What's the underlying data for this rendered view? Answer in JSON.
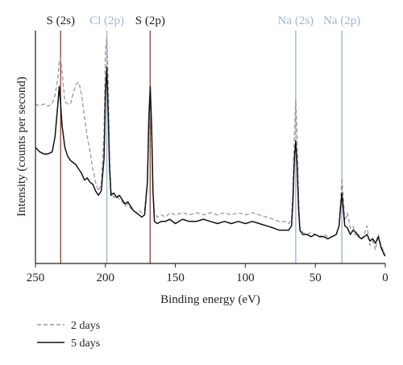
{
  "chart_data": {
    "type": "line",
    "xlabel": "Binding energy (eV)",
    "ylabel": "Intensity (counts per second)",
    "xlim": [
      250,
      0
    ],
    "x_reversed": true,
    "x_ticks": [
      250,
      200,
      150,
      100,
      50,
      0
    ],
    "y_ticks_shown": false,
    "ylim": [
      0,
      1
    ],
    "grid": false,
    "legend_position": "bottom-left",
    "colors": {
      "s_lines": "#a0483a",
      "cl_na_lines": "#9db8d2",
      "s_label": "#222222",
      "cl_na_label": "#9fb6cc",
      "series_2days": "#999999",
      "series_5days": "#111111"
    },
    "annotations": [
      {
        "label": "S (2s)",
        "x": 232,
        "color_key": "s_lines"
      },
      {
        "label": "Cl (2p)",
        "x": 199,
        "color_key": "cl_na_lines"
      },
      {
        "label": "S (2p)",
        "x": 168,
        "color_key": "s_lines"
      },
      {
        "label": "Na (2s)",
        "x": 64,
        "color_key": "cl_na_lines"
      },
      {
        "label": "Na (2p)",
        "x": 31,
        "color_key": "cl_na_lines"
      }
    ],
    "series": [
      {
        "name": "2 days",
        "style": "dashed",
        "points": [
          [
            250,
            0.7
          ],
          [
            247,
            0.69
          ],
          [
            244,
            0.7
          ],
          [
            241,
            0.69
          ],
          [
            238,
            0.7
          ],
          [
            236,
            0.74
          ],
          [
            234,
            0.82
          ],
          [
            233,
            0.9
          ],
          [
            232,
            0.91
          ],
          [
            231,
            0.85
          ],
          [
            229,
            0.71
          ],
          [
            227,
            0.7
          ],
          [
            225,
            0.7
          ],
          [
            223,
            0.75
          ],
          [
            221,
            0.79
          ],
          [
            219,
            0.8
          ],
          [
            217,
            0.74
          ],
          [
            215,
            0.64
          ],
          [
            213,
            0.55
          ],
          [
            211,
            0.48
          ],
          [
            209,
            0.4
          ],
          [
            207,
            0.34
          ],
          [
            205,
            0.3
          ],
          [
            203,
            0.33
          ],
          [
            201,
            0.57
          ],
          [
            200,
            0.95
          ],
          [
            199,
            1.0
          ],
          [
            198,
            0.8
          ],
          [
            197,
            0.45
          ],
          [
            196,
            0.3
          ],
          [
            194,
            0.27
          ],
          [
            192,
            0.28
          ],
          [
            190,
            0.26
          ],
          [
            188,
            0.25
          ],
          [
            186,
            0.23
          ],
          [
            184,
            0.24
          ],
          [
            182,
            0.22
          ],
          [
            180,
            0.21
          ],
          [
            178,
            0.2
          ],
          [
            176,
            0.21
          ],
          [
            174,
            0.2
          ],
          [
            172,
            0.21
          ],
          [
            170,
            0.34
          ],
          [
            169,
            0.58
          ],
          [
            168,
            0.67
          ],
          [
            167,
            0.55
          ],
          [
            166,
            0.3
          ],
          [
            165,
            0.2
          ],
          [
            163,
            0.18
          ],
          [
            160,
            0.19
          ],
          [
            157,
            0.18
          ],
          [
            154,
            0.2
          ],
          [
            150,
            0.19
          ],
          [
            145,
            0.2
          ],
          [
            140,
            0.19
          ],
          [
            135,
            0.2
          ],
          [
            130,
            0.19
          ],
          [
            125,
            0.2
          ],
          [
            120,
            0.19
          ],
          [
            115,
            0.2
          ],
          [
            110,
            0.19
          ],
          [
            105,
            0.2
          ],
          [
            100,
            0.19
          ],
          [
            95,
            0.2
          ],
          [
            90,
            0.19
          ],
          [
            85,
            0.18
          ],
          [
            80,
            0.17
          ],
          [
            76,
            0.16
          ],
          [
            72,
            0.16
          ],
          [
            69,
            0.15
          ],
          [
            67,
            0.17
          ],
          [
            66,
            0.3
          ],
          [
            65,
            0.55
          ],
          [
            64,
            0.72
          ],
          [
            63,
            0.56
          ],
          [
            62,
            0.28
          ],
          [
            61,
            0.13
          ],
          [
            59,
            0.11
          ],
          [
            56,
            0.1
          ],
          [
            53,
            0.11
          ],
          [
            50,
            0.1
          ],
          [
            47,
            0.09
          ],
          [
            44,
            0.1
          ],
          [
            41,
            0.09
          ],
          [
            38,
            0.09
          ],
          [
            35,
            0.1
          ],
          [
            33,
            0.14
          ],
          [
            32,
            0.24
          ],
          [
            31,
            0.36
          ],
          [
            30,
            0.27
          ],
          [
            29,
            0.16
          ],
          [
            27,
            0.2
          ],
          [
            25,
            0.13
          ],
          [
            23,
            0.14
          ],
          [
            21,
            0.09
          ],
          [
            19,
            0.1
          ],
          [
            17,
            0.08
          ],
          [
            15,
            0.1
          ],
          [
            13,
            0.14
          ],
          [
            11,
            0.05
          ],
          [
            9,
            0.07
          ],
          [
            7,
            0.03
          ],
          [
            5,
            0.1
          ],
          [
            3,
            0.05
          ],
          [
            1,
            0.02
          ],
          [
            0,
            0.01
          ]
        ]
      },
      {
        "name": "5 days",
        "style": "solid",
        "points": [
          [
            250,
            0.5
          ],
          [
            247,
            0.48
          ],
          [
            244,
            0.47
          ],
          [
            241,
            0.47
          ],
          [
            238,
            0.48
          ],
          [
            236,
            0.55
          ],
          [
            234,
            0.7
          ],
          [
            233,
            0.78
          ],
          [
            232,
            0.7
          ],
          [
            231,
            0.6
          ],
          [
            229,
            0.5
          ],
          [
            227,
            0.46
          ],
          [
            225,
            0.44
          ],
          [
            223,
            0.43
          ],
          [
            221,
            0.42
          ],
          [
            219,
            0.4
          ],
          [
            217,
            0.38
          ],
          [
            215,
            0.35
          ],
          [
            213,
            0.36
          ],
          [
            211,
            0.34
          ],
          [
            209,
            0.33
          ],
          [
            207,
            0.3
          ],
          [
            205,
            0.28
          ],
          [
            203,
            0.3
          ],
          [
            201,
            0.45
          ],
          [
            200,
            0.75
          ],
          [
            199,
            0.87
          ],
          [
            198,
            0.65
          ],
          [
            197,
            0.4
          ],
          [
            196,
            0.28
          ],
          [
            194,
            0.29
          ],
          [
            192,
            0.27
          ],
          [
            190,
            0.28
          ],
          [
            188,
            0.26
          ],
          [
            186,
            0.24
          ],
          [
            184,
            0.25
          ],
          [
            182,
            0.23
          ],
          [
            180,
            0.21
          ],
          [
            178,
            0.2
          ],
          [
            176,
            0.19
          ],
          [
            174,
            0.18
          ],
          [
            172,
            0.19
          ],
          [
            170,
            0.34
          ],
          [
            169,
            0.63
          ],
          [
            168,
            0.78
          ],
          [
            167,
            0.6
          ],
          [
            166,
            0.3
          ],
          [
            165,
            0.16
          ],
          [
            163,
            0.15
          ],
          [
            160,
            0.16
          ],
          [
            157,
            0.16
          ],
          [
            154,
            0.17
          ],
          [
            150,
            0.15
          ],
          [
            145,
            0.17
          ],
          [
            140,
            0.16
          ],
          [
            135,
            0.16
          ],
          [
            130,
            0.17
          ],
          [
            125,
            0.16
          ],
          [
            120,
            0.15
          ],
          [
            115,
            0.16
          ],
          [
            110,
            0.15
          ],
          [
            105,
            0.16
          ],
          [
            100,
            0.15
          ],
          [
            95,
            0.16
          ],
          [
            90,
            0.15
          ],
          [
            85,
            0.14
          ],
          [
            80,
            0.13
          ],
          [
            76,
            0.12
          ],
          [
            72,
            0.12
          ],
          [
            69,
            0.12
          ],
          [
            67,
            0.14
          ],
          [
            66,
            0.25
          ],
          [
            65,
            0.45
          ],
          [
            64,
            0.53
          ],
          [
            63,
            0.42
          ],
          [
            62,
            0.22
          ],
          [
            61,
            0.12
          ],
          [
            59,
            0.1
          ],
          [
            56,
            0.1
          ],
          [
            53,
            0.09
          ],
          [
            50,
            0.1
          ],
          [
            47,
            0.09
          ],
          [
            44,
            0.09
          ],
          [
            41,
            0.08
          ],
          [
            38,
            0.09
          ],
          [
            35,
            0.1
          ],
          [
            33,
            0.14
          ],
          [
            32,
            0.22
          ],
          [
            31,
            0.29
          ],
          [
            30,
            0.22
          ],
          [
            29,
            0.14
          ],
          [
            27,
            0.13
          ],
          [
            25,
            0.1
          ],
          [
            23,
            0.12
          ],
          [
            21,
            0.11
          ],
          [
            19,
            0.09
          ],
          [
            17,
            0.08
          ],
          [
            15,
            0.09
          ],
          [
            13,
            0.1
          ],
          [
            11,
            0.07
          ],
          [
            9,
            0.08
          ],
          [
            7,
            0.06
          ],
          [
            5,
            0.09
          ],
          [
            3,
            0.04
          ],
          [
            1,
            0.01
          ],
          [
            0,
            0.0
          ]
        ]
      }
    ]
  }
}
